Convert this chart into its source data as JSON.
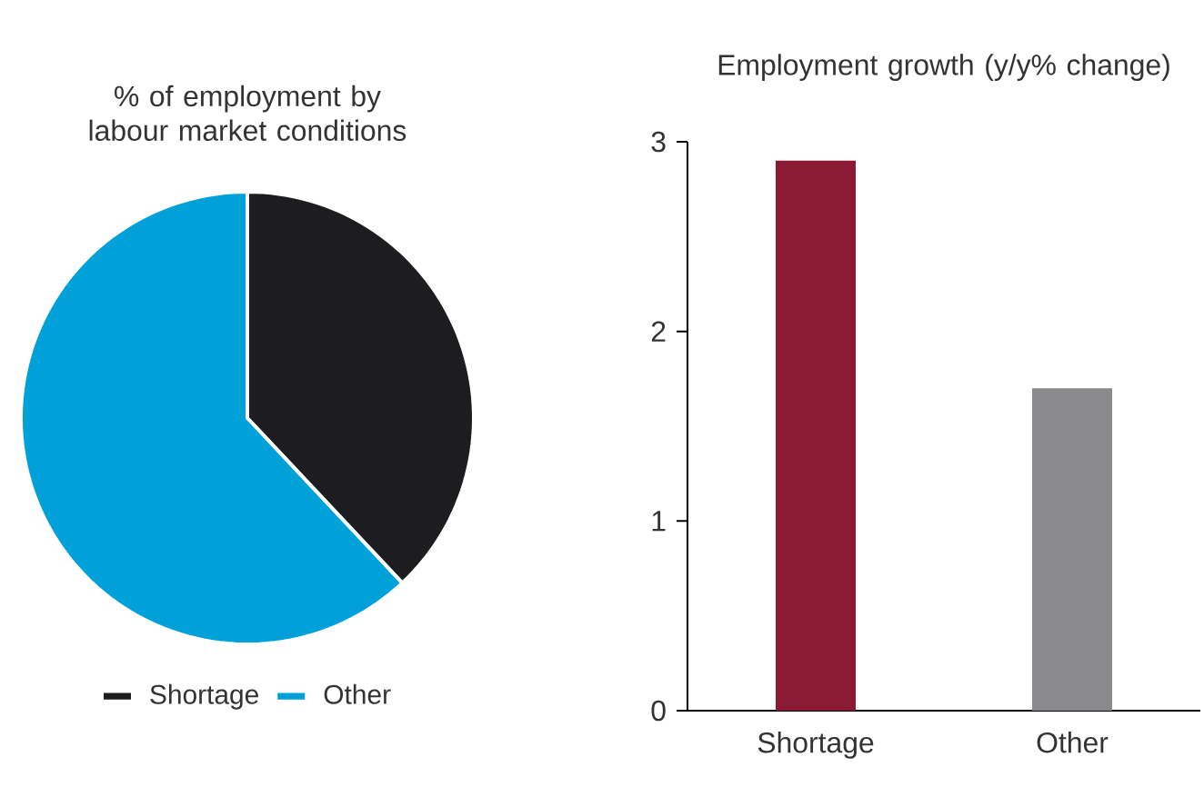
{
  "chart_data": [
    {
      "type": "pie",
      "title": "% of employment by labour market conditions",
      "categories": [
        "Shortage",
        "Other"
      ],
      "values": [
        38,
        62
      ],
      "colors": [
        "#1d1d1f",
        "#00a0d8"
      ],
      "legend": "bottom"
    },
    {
      "type": "bar",
      "title": "Employment growth (y/y% change)",
      "categories": [
        "Shortage",
        "Other"
      ],
      "values": [
        2.9,
        1.7
      ],
      "colors": [
        "#8b1a35",
        "#8a8a8c"
      ],
      "ylim": [
        0,
        3
      ],
      "yticks": [
        0,
        1,
        2,
        3
      ]
    }
  ]
}
